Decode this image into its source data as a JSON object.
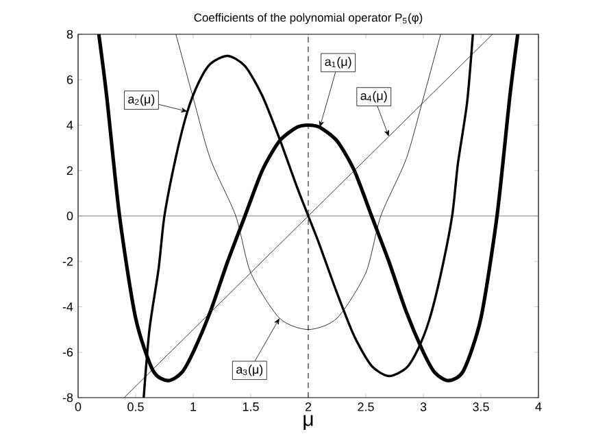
{
  "chart_data": {
    "type": "line",
    "title": "Coefficients of the polynomial operator P$_{5}$(φ)",
    "xlabel": "μ",
    "xlim": [
      0,
      4
    ],
    "ylim": [
      -8,
      8
    ],
    "xticks": [
      0,
      0.5,
      1,
      1.5,
      2,
      2.5,
      3,
      3.5,
      4
    ],
    "yticks": [
      -8,
      -6,
      -4,
      -2,
      0,
      2,
      4,
      6,
      8
    ],
    "grid": false,
    "marker": "none",
    "series": [
      {
        "color": "#000000",
        "x": [
          0.18,
          0.25,
          0.36,
          0.5,
          0.65,
          0.78,
          0.9,
          1.0,
          1.15,
          1.3,
          1.45,
          1.6,
          1.75,
          1.9,
          2.0,
          2.1,
          2.25,
          2.4,
          2.55,
          2.7,
          2.85,
          3.0,
          3.1,
          3.22,
          3.35,
          3.5,
          3.64,
          3.75,
          3.82
        ],
        "values": [
          8,
          5.2,
          0,
          -4.5,
          -6.8,
          -7.25,
          -6.9,
          -6.0,
          -4.2,
          -2.0,
          0,
          2.0,
          3.3,
          3.9,
          4,
          3.9,
          3.3,
          2.0,
          0,
          -2.0,
          -4.2,
          -6.0,
          -6.9,
          -7.25,
          -6.8,
          -4.5,
          0,
          5.2,
          8
        ]
      },
      {
        "color": "#000000",
        "x": [
          0.57,
          0.62,
          0.7,
          0.75,
          0.85,
          0.95,
          1.05,
          1.15,
          1.3,
          1.45,
          1.6,
          1.75,
          1.9,
          2.0,
          2.1,
          2.25,
          2.4,
          2.55,
          2.7,
          2.85,
          2.95,
          3.05,
          3.15,
          3.25,
          3.3,
          3.38,
          3.43
        ],
        "values": [
          -8,
          -5,
          -2.3,
          0,
          2.6,
          4.6,
          5.9,
          6.7,
          7.05,
          6.6,
          5.3,
          3.4,
          1.3,
          0,
          -1.3,
          -3.4,
          -5.3,
          -6.6,
          -7.05,
          -6.7,
          -5.9,
          -4.6,
          -2.6,
          0,
          2.3,
          5,
          8
        ]
      },
      {
        "color": "#000000",
        "x": [
          0.85,
          1.0,
          1.15,
          1.37,
          1.5,
          1.75,
          2.0,
          2.25,
          2.5,
          2.63,
          2.85,
          3.0,
          3.15
        ],
        "values": [
          8,
          5.2,
          2.5,
          0,
          -2.5,
          -4.5,
          -5,
          -4.5,
          -2.5,
          0,
          2.5,
          5.2,
          8
        ]
      },
      {
        "color": "#000000",
        "x": [
          0.4,
          2.7,
          3.6
        ],
        "values": [
          -8,
          3.5,
          8
        ]
      }
    ],
    "annotations": [
      {
        "text": "a$_{1}$(μ)",
        "x": 2.1,
        "y": 3.9
      },
      {
        "text": "a$_{2}$(μ)",
        "x": 0.95,
        "y": 4.6
      },
      {
        "text": "a$_{3}$(μ)",
        "x": 1.75,
        "y": -4.5
      },
      {
        "text": "a$_{4}$(μ)",
        "x": 2.7,
        "y": 3.5
      }
    ],
    "ref_lines": [
      {
        "axis": "x",
        "value": 2,
        "line_style": "dashed",
        "color": "#000000"
      },
      {
        "axis": "y",
        "value": 0,
        "line_style": "solid",
        "color": "#808080"
      }
    ]
  }
}
